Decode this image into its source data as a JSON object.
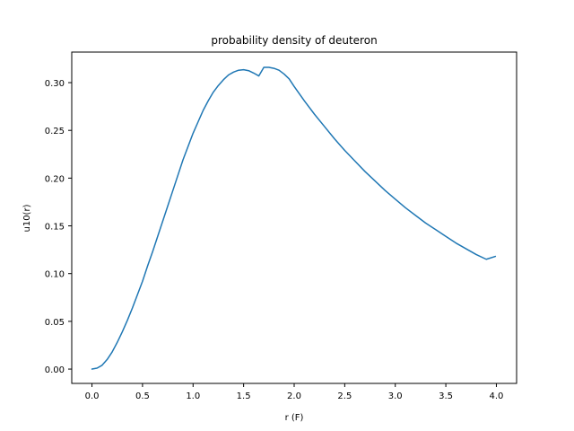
{
  "chart_data": {
    "type": "line",
    "title": "probability density of deuteron",
    "xlabel": "r (F)",
    "ylabel": "u10(r)",
    "xlim": [
      -0.2,
      4.2
    ],
    "ylim": [
      -0.015,
      0.332
    ],
    "xticks": [
      0.0,
      0.5,
      1.0,
      1.5,
      2.0,
      2.5,
      3.0,
      3.5,
      4.0
    ],
    "xtick_labels": [
      "0.0",
      "0.5",
      "1.0",
      "1.5",
      "2.0",
      "2.5",
      "3.0",
      "3.5",
      "4.0"
    ],
    "yticks": [
      0.0,
      0.05,
      0.1,
      0.15,
      0.2,
      0.25,
      0.3
    ],
    "ytick_labels": [
      "0.00",
      "0.05",
      "0.10",
      "0.15",
      "0.20",
      "0.25",
      "0.30"
    ],
    "grid": false,
    "series": [
      {
        "color": "#1f77b4",
        "x": [
          0.0,
          0.05,
          0.1,
          0.15,
          0.2,
          0.25,
          0.3,
          0.35,
          0.4,
          0.45,
          0.5,
          0.55,
          0.6,
          0.65,
          0.7,
          0.75,
          0.8,
          0.85,
          0.9,
          0.95,
          1.0,
          1.05,
          1.1,
          1.15,
          1.2,
          1.25,
          1.3,
          1.35,
          1.4,
          1.45,
          1.5,
          1.55,
          1.6,
          1.65,
          1.7,
          1.75,
          1.8,
          1.85,
          1.9,
          1.95,
          2.0,
          2.1,
          2.2,
          2.3,
          2.4,
          2.5,
          2.6,
          2.7,
          2.8,
          2.9,
          3.0,
          3.1,
          3.2,
          3.3,
          3.4,
          3.5,
          3.6,
          3.7,
          3.8,
          3.9,
          3.99
        ],
        "y": [
          0.0,
          0.001,
          0.004,
          0.01,
          0.018,
          0.028,
          0.039,
          0.051,
          0.064,
          0.078,
          0.092,
          0.108,
          0.123,
          0.139,
          0.155,
          0.171,
          0.187,
          0.203,
          0.219,
          0.233,
          0.247,
          0.259,
          0.271,
          0.281,
          0.29,
          0.297,
          0.303,
          0.308,
          0.311,
          0.313,
          0.3135,
          0.3125,
          0.31,
          0.307,
          0.316,
          0.316,
          0.315,
          0.313,
          0.309,
          0.304,
          0.296,
          0.281,
          0.267,
          0.254,
          0.241,
          0.229,
          0.218,
          0.207,
          0.197,
          0.187,
          0.178,
          0.169,
          0.161,
          0.153,
          0.146,
          0.139,
          0.132,
          0.126,
          0.12,
          0.115,
          0.118
        ]
      }
    ]
  }
}
